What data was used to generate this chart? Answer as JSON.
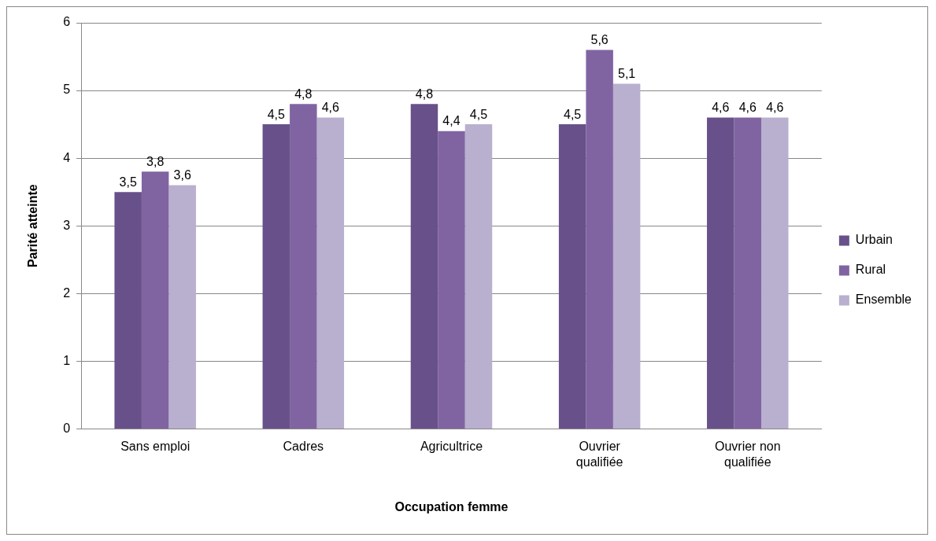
{
  "chart_data": {
    "type": "bar",
    "xlabel": "Occupation femme",
    "ylabel": "Parité atteinte",
    "categories": [
      "Sans emploi",
      "Cadres",
      "Agricultrice",
      "Ouvrier qualifiée",
      "Ouvrier non qualifiée"
    ],
    "series": [
      {
        "name": "Urbain",
        "color": "#68518a",
        "values": [
          3.5,
          4.5,
          4.8,
          4.5,
          4.6
        ],
        "value_labels": [
          "3,5",
          "4,5",
          "4,8",
          "4,5",
          "4,6"
        ]
      },
      {
        "name": "Rural",
        "color": "#8064a2",
        "values": [
          3.8,
          4.8,
          4.4,
          5.6,
          4.6
        ],
        "value_labels": [
          "3,8",
          "4,8",
          "4,4",
          "5,6",
          "4,6"
        ]
      },
      {
        "name": "Ensemble",
        "color": "#b9afcf",
        "values": [
          3.6,
          4.6,
          4.5,
          5.1,
          4.6
        ],
        "value_labels": [
          "3,6",
          "4,6",
          "4,5",
          "5,1",
          "4,6"
        ]
      }
    ],
    "ylim": [
      0,
      6
    ],
    "yticks": [
      0,
      1,
      2,
      3,
      4,
      5,
      6
    ],
    "grid": "y",
    "legend": "right"
  }
}
